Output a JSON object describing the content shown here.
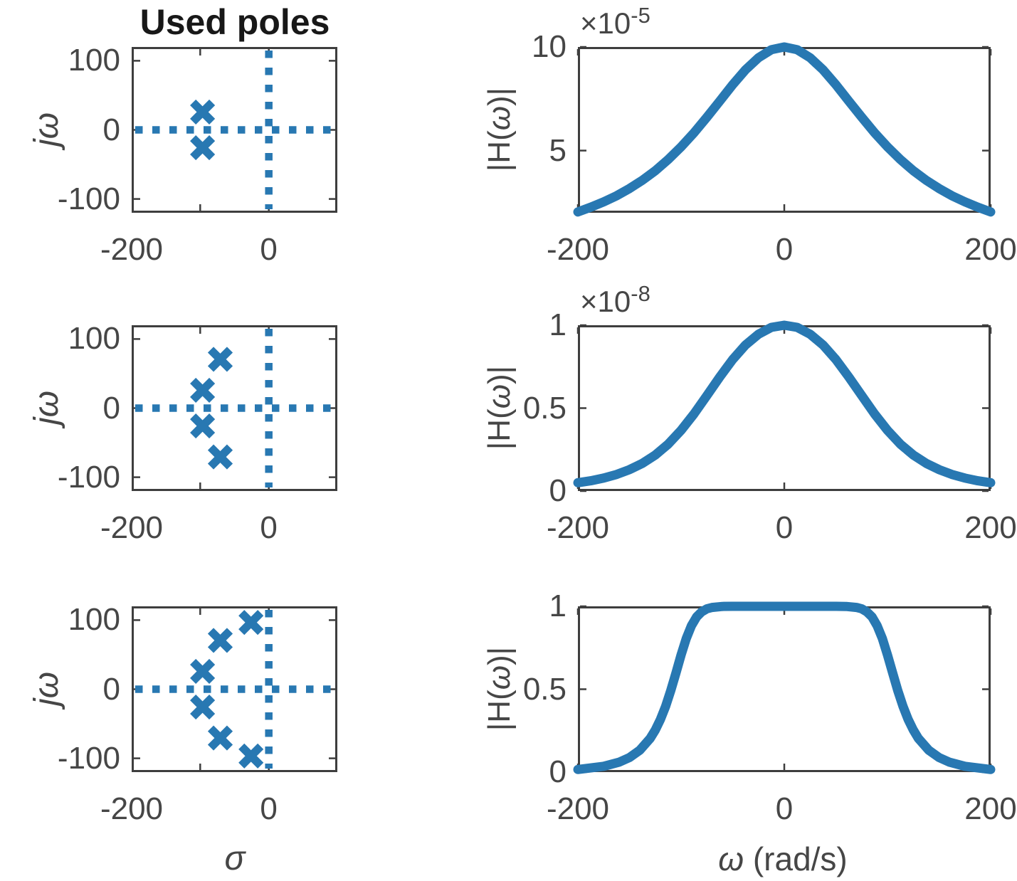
{
  "figure": {
    "accent_color": "#2878b2",
    "axis_color": "#3e3e3e",
    "text_color": "#464646",
    "background": "#ffffff"
  },
  "labels": {
    "title": "Used poles",
    "jomega": "jω",
    "H": "|H(ω)|",
    "sigma": "σ",
    "omega_axis": "ω (rad/s)",
    "exp5": {
      "base": "×10",
      "power": "-5"
    },
    "exp8": {
      "base": "×10",
      "power": "-8"
    }
  },
  "chart_data": [
    {
      "id": "poles-order2",
      "type": "scatter",
      "title": "Used poles",
      "ylabel": "jω",
      "xlim": [
        -200,
        100
      ],
      "ylim": [
        -120,
        120
      ],
      "xtick_marks": [
        -100,
        0
      ],
      "ytick_marks": [
        -100,
        0,
        100
      ],
      "xtick_labels": [
        {
          "v": -200,
          "t": "-200"
        },
        {
          "v": 0,
          "t": "0"
        }
      ],
      "ytick_labels": [
        {
          "v": 100,
          "t": "100"
        },
        {
          "v": 0,
          "t": "0"
        },
        {
          "v": -100,
          "t": "-100"
        }
      ],
      "ref_lines": {
        "x": 0,
        "y": 0
      },
      "marker": "x",
      "poles": [
        [
          -96.59,
          25.88
        ],
        [
          -96.59,
          -25.88
        ]
      ]
    },
    {
      "id": "mag-order2",
      "type": "line",
      "ylabel": "|H(ω)|",
      "y_scale_label": "×10^-5",
      "xlim": [
        -200,
        200
      ],
      "ylim": [
        2,
        10
      ],
      "xtick_marks": [
        -200,
        0,
        200
      ],
      "ytick_marks": [
        5,
        10
      ],
      "xtick_labels": [
        {
          "v": -200,
          "t": "-200"
        },
        {
          "v": 0,
          "t": "0"
        },
        {
          "v": 200,
          "t": "200"
        }
      ],
      "ytick_labels": [
        {
          "v": 10,
          "t": "10"
        },
        {
          "v": 5,
          "t": "5"
        }
      ],
      "x": [
        -200,
        -187.5,
        -175,
        -162.5,
        -150,
        -137.5,
        -125,
        -112.5,
        -100,
        -87.5,
        -75,
        -62.5,
        -50,
        -37.5,
        -25,
        -12.5,
        0,
        12.5,
        25,
        37.5,
        50,
        62.5,
        75,
        87.5,
        100,
        112.5,
        125,
        137.5,
        150,
        162.5,
        175,
        187.5,
        200
      ],
      "y": [
        2.04,
        2.27,
        2.53,
        2.82,
        3.17,
        3.57,
        4.03,
        4.57,
        5.18,
        5.86,
        6.61,
        7.39,
        8.18,
        8.9,
        9.48,
        9.87,
        10.0,
        9.87,
        9.48,
        8.9,
        8.18,
        7.39,
        6.61,
        5.86,
        5.18,
        4.57,
        4.03,
        3.57,
        3.17,
        2.82,
        2.53,
        2.27,
        2.04
      ]
    },
    {
      "id": "poles-order4",
      "type": "scatter",
      "ylabel": "jω",
      "xlim": [
        -200,
        100
      ],
      "ylim": [
        -120,
        120
      ],
      "xtick_marks": [
        -100,
        0
      ],
      "ytick_marks": [
        -100,
        0,
        100
      ],
      "xtick_labels": [
        {
          "v": -200,
          "t": "-200"
        },
        {
          "v": 0,
          "t": "0"
        }
      ],
      "ytick_labels": [
        {
          "v": 100,
          "t": "100"
        },
        {
          "v": 0,
          "t": "0"
        },
        {
          "v": -100,
          "t": "-100"
        }
      ],
      "ref_lines": {
        "x": 0,
        "y": 0
      },
      "marker": "x",
      "poles": [
        [
          -70.71,
          70.71
        ],
        [
          -96.59,
          25.88
        ],
        [
          -96.59,
          -25.88
        ],
        [
          -70.71,
          -70.71
        ]
      ]
    },
    {
      "id": "mag-order4",
      "type": "line",
      "ylabel": "|H(ω)|",
      "y_scale_label": "×10^-8",
      "xlim": [
        -200,
        200
      ],
      "ylim": [
        0,
        1
      ],
      "xtick_marks": [
        -200,
        0,
        200
      ],
      "ytick_marks": [
        0,
        0.5,
        1
      ],
      "xtick_labels": [
        {
          "v": -200,
          "t": "-200"
        },
        {
          "v": 0,
          "t": "0"
        },
        {
          "v": 200,
          "t": "200"
        }
      ],
      "ytick_labels": [
        {
          "v": 1,
          "t": "1"
        },
        {
          "v": 0.5,
          "t": "0.5"
        },
        {
          "v": 0,
          "t": "0"
        }
      ],
      "x": [
        -200,
        -187.5,
        -175,
        -162.5,
        -150,
        -137.5,
        -125,
        -112.5,
        -100,
        -87.5,
        -75,
        -62.5,
        -50,
        -37.5,
        -25,
        -12.5,
        0,
        12.5,
        25,
        37.5,
        50,
        62.5,
        75,
        87.5,
        100,
        112.5,
        125,
        137.5,
        150,
        162.5,
        175,
        187.5,
        200
      ],
      "y": [
        0.05,
        0.062,
        0.078,
        0.1,
        0.129,
        0.167,
        0.217,
        0.283,
        0.366,
        0.465,
        0.576,
        0.688,
        0.793,
        0.881,
        0.946,
        0.987,
        1.0,
        0.987,
        0.946,
        0.881,
        0.793,
        0.688,
        0.576,
        0.465,
        0.366,
        0.283,
        0.217,
        0.167,
        0.129,
        0.1,
        0.078,
        0.062,
        0.05
      ]
    },
    {
      "id": "poles-order6",
      "type": "scatter",
      "ylabel": "jω",
      "xlabel": "σ",
      "xlim": [
        -200,
        100
      ],
      "ylim": [
        -120,
        120
      ],
      "xtick_marks": [
        -100,
        0
      ],
      "ytick_marks": [
        -100,
        0,
        100
      ],
      "xtick_labels": [
        {
          "v": -200,
          "t": "-200"
        },
        {
          "v": 0,
          "t": "0"
        }
      ],
      "ytick_labels": [
        {
          "v": 100,
          "t": "100"
        },
        {
          "v": 0,
          "t": "0"
        },
        {
          "v": -100,
          "t": "-100"
        }
      ],
      "ref_lines": {
        "x": 0,
        "y": 0
      },
      "marker": "x",
      "poles": [
        [
          -25.88,
          96.59
        ],
        [
          -70.71,
          70.71
        ],
        [
          -96.59,
          25.88
        ],
        [
          -96.59,
          -25.88
        ],
        [
          -70.71,
          -70.71
        ],
        [
          -25.88,
          -96.59
        ]
      ]
    },
    {
      "id": "mag-order6",
      "type": "line",
      "ylabel": "|H(ω)|",
      "xlabel": "ω (rad/s)",
      "xlim": [
        -200,
        200
      ],
      "ylim": [
        0,
        1
      ],
      "xtick_marks": [
        -200,
        0,
        200
      ],
      "ytick_marks": [
        0,
        0.5,
        1
      ],
      "xtick_labels": [
        {
          "v": -200,
          "t": "-200"
        },
        {
          "v": 0,
          "t": "0"
        },
        {
          "v": 200,
          "t": "200"
        }
      ],
      "ytick_labels": [
        {
          "v": 1,
          "t": "1"
        },
        {
          "v": 0.5,
          "t": "0.5"
        },
        {
          "v": 0,
          "t": "0"
        }
      ],
      "x": [
        -200,
        -175,
        -160,
        -150,
        -140,
        -130,
        -125,
        -120,
        -115,
        -110,
        -105,
        -100,
        -95,
        -90,
        -85,
        -80,
        -75,
        -70,
        -60,
        -50,
        -25,
        0,
        25,
        50,
        60,
        70,
        75,
        80,
        85,
        90,
        95,
        100,
        105,
        110,
        115,
        120,
        125,
        130,
        140,
        150,
        160,
        175,
        200
      ],
      "y": [
        0.016,
        0.035,
        0.06,
        0.088,
        0.132,
        0.203,
        0.254,
        0.318,
        0.397,
        0.492,
        0.598,
        0.707,
        0.806,
        0.883,
        0.936,
        0.967,
        0.985,
        0.993,
        0.999,
        1.0,
        1.0,
        1.0,
        1.0,
        1.0,
        0.999,
        0.993,
        0.985,
        0.967,
        0.936,
        0.883,
        0.806,
        0.707,
        0.598,
        0.492,
        0.397,
        0.318,
        0.254,
        0.203,
        0.132,
        0.088,
        0.06,
        0.035,
        0.016
      ]
    }
  ]
}
